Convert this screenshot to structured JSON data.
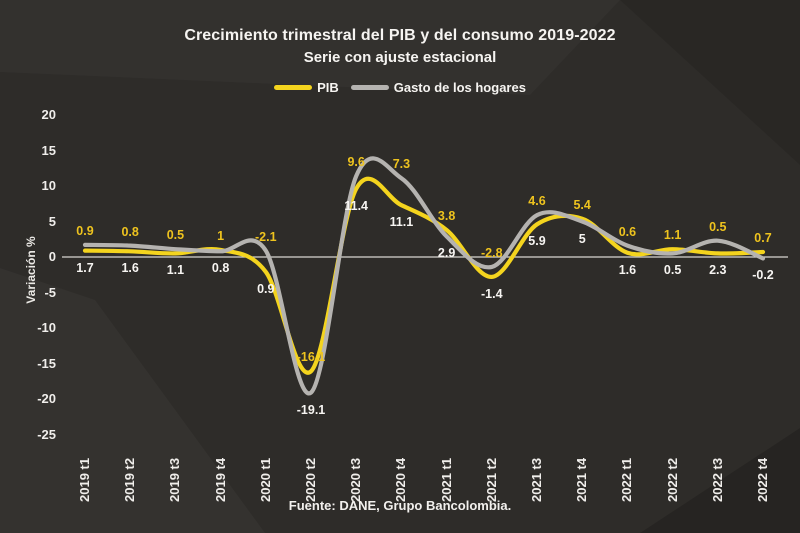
{
  "title": "Crecimiento trimestral del PIB y del consumo 2019-2022",
  "subtitle": "Serie  con ajuste estacional",
  "source": "Fuente: DANE, Grupo Bancolombia.",
  "ylabel": "Variación %",
  "colors": {
    "background": "#2e2c29",
    "text": "#f6f4f1",
    "zero_line": "#d8d6d2",
    "pib_line": "#f4d41e",
    "pib_label": "#eec31e",
    "gasto_line": "#b5b3b0",
    "gasto_label": "#f7f5f2"
  },
  "chart_data": {
    "type": "line",
    "smoothed": true,
    "grid": false,
    "legend_position": "top",
    "title": "Crecimiento trimestral del PIB y del consumo 2019-2022",
    "subtitle": "Serie  con ajuste estacional",
    "xlabel": "",
    "ylabel": "Variación %",
    "ylim": [
      -25,
      20
    ],
    "ytick_step": 5,
    "yticks": [
      20,
      15,
      10,
      5,
      0,
      -5,
      -10,
      -15,
      -20,
      -25
    ],
    "categories": [
      "2019 t1",
      "2019 t2",
      "2019 t3",
      "2019 t4",
      "2020 t1",
      "2020 t2",
      "2020 t3",
      "2020 t4",
      "2021 t1",
      "2021 t2",
      "2021 t3",
      "2021 t4",
      "2022 t1",
      "2022 t2",
      "2022 t3",
      "2022 t4"
    ],
    "series": [
      {
        "name": "PIB",
        "color": "#f4d41e",
        "label_color": "#eec31e",
        "values": [
          0.9,
          0.8,
          0.5,
          1,
          -2.1,
          -16.1,
          9.6,
          7.3,
          3.8,
          -2.8,
          4.6,
          5.4,
          0.6,
          1.1,
          0.5,
          0.7
        ]
      },
      {
        "name": "Gasto de los hogares",
        "color": "#b5b3b0",
        "label_color": "#f7f5f2",
        "values": [
          1.7,
          1.6,
          1.1,
          0.8,
          0.9,
          -19.1,
          11.4,
          11.1,
          2.9,
          -1.4,
          5.9,
          5,
          1.6,
          0.5,
          2.3,
          -0.2
        ]
      }
    ]
  }
}
